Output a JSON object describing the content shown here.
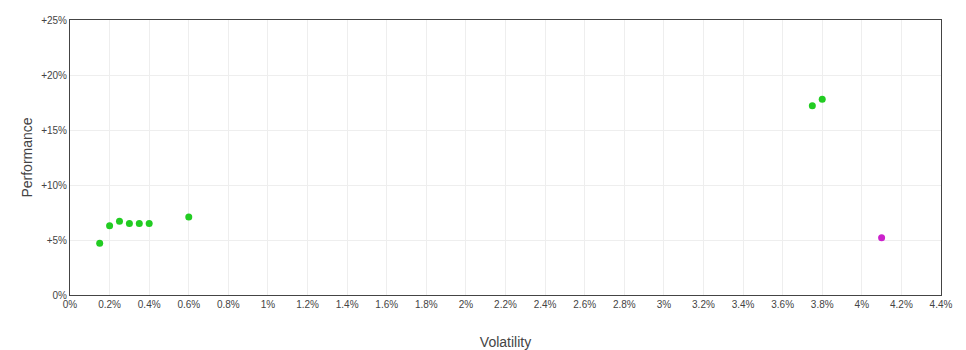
{
  "chart_data": {
    "type": "scatter",
    "xlabel": "Volatility",
    "ylabel": "Performance",
    "xlim": [
      0,
      0.044
    ],
    "ylim": [
      0,
      0.25
    ],
    "xticks": [
      {
        "value": 0.0,
        "label": "0%"
      },
      {
        "value": 0.002,
        "label": "0.2%"
      },
      {
        "value": 0.004,
        "label": "0.4%"
      },
      {
        "value": 0.006,
        "label": "0.6%"
      },
      {
        "value": 0.008,
        "label": "0.8%"
      },
      {
        "value": 0.01,
        "label": "1%"
      },
      {
        "value": 0.012,
        "label": "1.2%"
      },
      {
        "value": 0.014,
        "label": "1.4%"
      },
      {
        "value": 0.016,
        "label": "1.6%"
      },
      {
        "value": 0.018,
        "label": "1.8%"
      },
      {
        "value": 0.02,
        "label": "2%"
      },
      {
        "value": 0.022,
        "label": "2.2%"
      },
      {
        "value": 0.024,
        "label": "2.4%"
      },
      {
        "value": 0.026,
        "label": "2.6%"
      },
      {
        "value": 0.028,
        "label": "2.8%"
      },
      {
        "value": 0.03,
        "label": "3%"
      },
      {
        "value": 0.032,
        "label": "3.2%"
      },
      {
        "value": 0.034,
        "label": "3.4%"
      },
      {
        "value": 0.036,
        "label": "3.6%"
      },
      {
        "value": 0.038,
        "label": "3.8%"
      },
      {
        "value": 0.04,
        "label": "4%"
      },
      {
        "value": 0.042,
        "label": "4.2%"
      },
      {
        "value": 0.044,
        "label": "4.4%"
      }
    ],
    "yticks": [
      {
        "value": 0.0,
        "label": "0%"
      },
      {
        "value": 0.05,
        "label": "+5%"
      },
      {
        "value": 0.1,
        "label": "+10%"
      },
      {
        "value": 0.15,
        "label": "+15%"
      },
      {
        "value": 0.2,
        "label": "+20%"
      },
      {
        "value": 0.25,
        "label": "+25%"
      }
    ],
    "grid": true,
    "series": [
      {
        "color": "#22cc22",
        "x": [
          0.0015,
          0.002,
          0.0025,
          0.003,
          0.0035,
          0.004,
          0.006,
          0.038,
          0.0375
        ],
        "values": [
          0.047,
          0.063,
          0.067,
          0.065,
          0.065,
          0.065,
          0.071,
          0.178,
          0.172
        ]
      },
      {
        "color": "#cc22cc",
        "x": [
          0.041
        ],
        "values": [
          0.052
        ]
      }
    ]
  }
}
